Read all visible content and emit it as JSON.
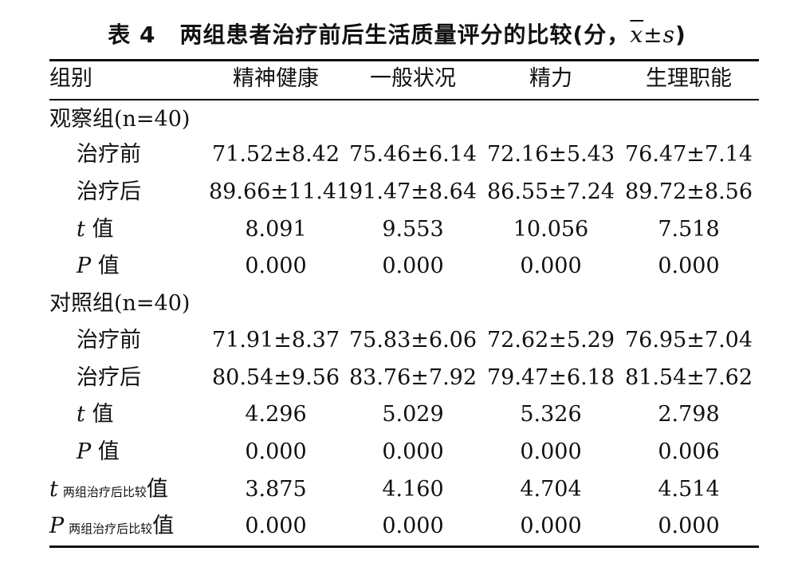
{
  "caption": {
    "label": "表 4",
    "title": "两组患者治疗前后生活质量评分的比较",
    "unit_open": "(分，",
    "xbar": "x",
    "pm": "±",
    "s": "s",
    "close": ")"
  },
  "table": {
    "headers": [
      "组别",
      "精神健康",
      "一般状况",
      "精力",
      "生理职能"
    ],
    "observation_group": {
      "name": "观察组",
      "n_label": "(n=40)",
      "before": {
        "label": "治疗前",
        "values": [
          "71.52±8.42",
          "75.46±6.14",
          "72.16±5.43",
          "76.47±7.14"
        ]
      },
      "after": {
        "label": "治疗后",
        "values": [
          "89.66±11.41",
          "91.47±8.64",
          "86.55±7.24",
          "89.72±8.56"
        ]
      },
      "t": {
        "symbol": "t",
        "label": "值",
        "values": [
          "8.091",
          "9.553",
          "10.056",
          "7.518"
        ]
      },
      "p": {
        "symbol": "P",
        "label": "值",
        "values": [
          "0.000",
          "0.000",
          "0.000",
          "0.000"
        ]
      }
    },
    "control_group": {
      "name": "对照组",
      "n_label": "(n=40)",
      "before": {
        "label": "治疗前",
        "values": [
          "71.91±8.37",
          "75.83±6.06",
          "72.62±5.29",
          "76.95±7.04"
        ]
      },
      "after": {
        "label": "治疗后",
        "values": [
          "80.54±9.56",
          "83.76±7.92",
          "79.47±6.18",
          "81.54±7.62"
        ]
      },
      "t": {
        "symbol": "t",
        "label": "值",
        "values": [
          "4.296",
          "5.029",
          "5.326",
          "2.798"
        ]
      },
      "p": {
        "symbol": "P",
        "label": "值",
        "values": [
          "0.000",
          "0.000",
          "0.000",
          "0.006"
        ]
      }
    },
    "between_t": {
      "symbol": "t",
      "subscript": "两组治疗后比较",
      "label": "值",
      "values": [
        "3.875",
        "4.160",
        "4.704",
        "4.514"
      ]
    },
    "between_p": {
      "symbol": "P",
      "subscript": "两组治疗后比较",
      "label": "值",
      "values": [
        "0.000",
        "0.000",
        "0.000",
        "0.000"
      ]
    }
  }
}
